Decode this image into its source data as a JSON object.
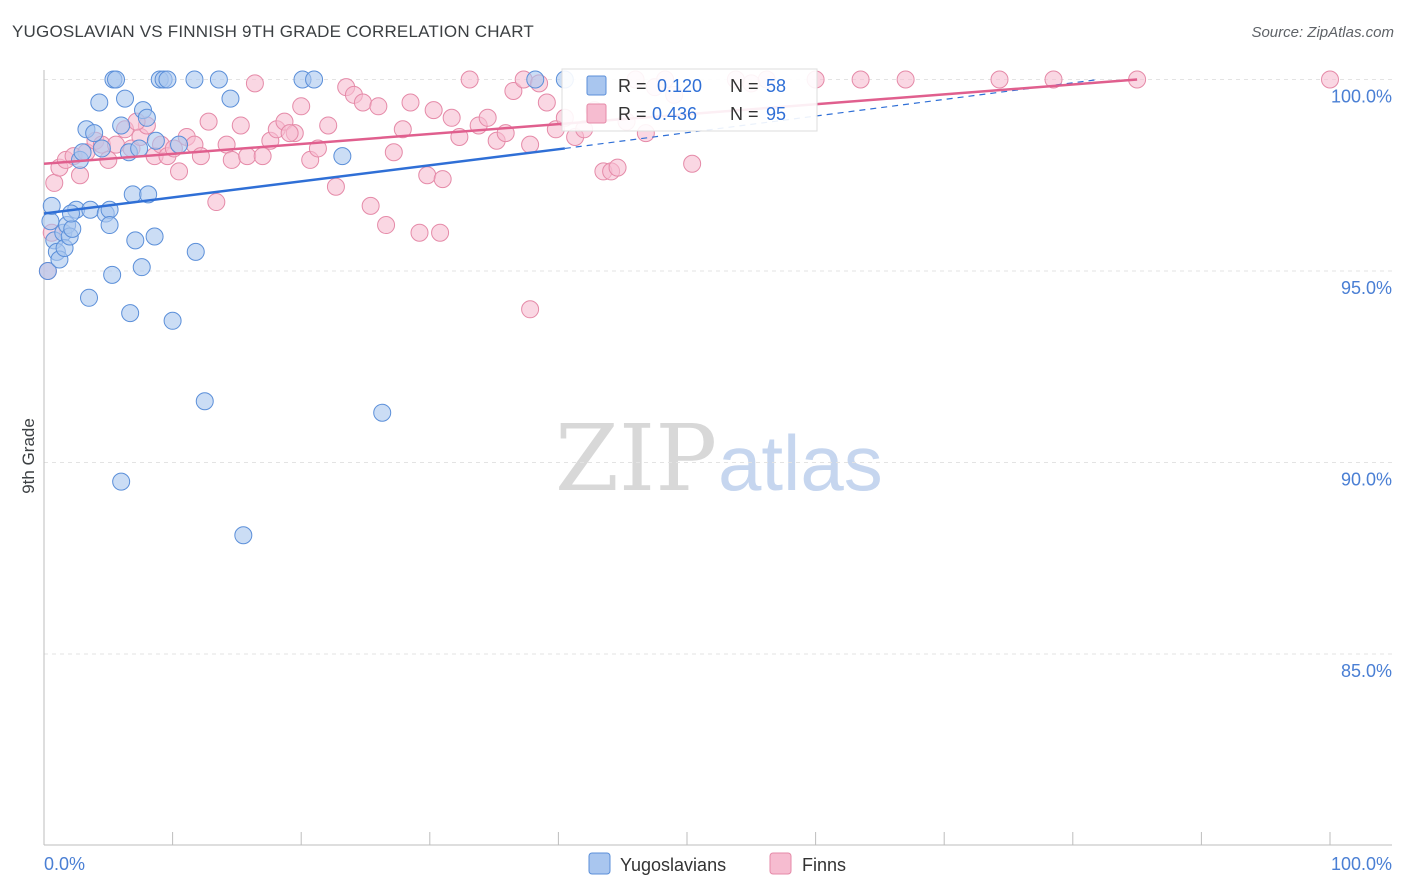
{
  "header": {
    "title": "YUGOSLAVIAN VS FINNISH 9TH GRADE CORRELATION CHART",
    "source": "Source: ZipAtlas.com"
  },
  "watermark": {
    "zip": "ZIP",
    "atlas": "atlas"
  },
  "colors": {
    "blue_fill": "#a9c6ef",
    "blue_stroke": "#5b8fd9",
    "blue_line": "#2f6fd6",
    "pink_fill": "#f6bcd0",
    "pink_stroke": "#e58aa8",
    "pink_line": "#e05f8e",
    "grid": "#e3e3e3",
    "tick_text": "#4a7fd4"
  },
  "stats": {
    "blue": {
      "r_label": "R =",
      "r_value": "0.120",
      "n_label": "N =",
      "n_value": "58"
    },
    "pink": {
      "r_label": "R =",
      "r_value": "0.436",
      "n_label": "N =",
      "n_value": "95"
    }
  },
  "chart_data": {
    "type": "scatter",
    "title": "YUGOSLAVIAN VS FINNISH 9TH GRADE CORRELATION CHART",
    "xlabel": "",
    "ylabel": "9th Grade",
    "xlim": [
      0,
      100
    ],
    "ylim": [
      80.5,
      100.5
    ],
    "x_tick_labels": [
      "0.0%",
      "100.0%"
    ],
    "y_ticks": [
      {
        "value": 85,
        "label": "85.0%"
      },
      {
        "value": 90,
        "label": "90.0%"
      },
      {
        "value": 95,
        "label": "95.0%"
      },
      {
        "value": 100,
        "label": "100.0%"
      }
    ],
    "legend": [
      "Yugoslavians",
      "Finns"
    ],
    "series": [
      {
        "name": "Yugoslavians",
        "color": "blue",
        "trend": {
          "x0": 0,
          "y0": 96.5,
          "x1": 40.5,
          "y1": 98.2,
          "dash_x1": 82.0,
          "dash_y1": 100.0
        },
        "points": [
          [
            0.3,
            95.0
          ],
          [
            0.5,
            96.3
          ],
          [
            0.6,
            96.7
          ],
          [
            0.8,
            95.8
          ],
          [
            1.0,
            95.5
          ],
          [
            1.2,
            95.3
          ],
          [
            1.5,
            96.0
          ],
          [
            1.6,
            95.6
          ],
          [
            1.8,
            96.2
          ],
          [
            2.0,
            95.9
          ],
          [
            2.2,
            96.1
          ],
          [
            2.5,
            96.6
          ],
          [
            2.8,
            97.9
          ],
          [
            3.0,
            98.1
          ],
          [
            3.3,
            98.7
          ],
          [
            3.6,
            96.6
          ],
          [
            3.9,
            98.6
          ],
          [
            4.3,
            99.4
          ],
          [
            4.8,
            96.5
          ],
          [
            5.1,
            96.6
          ],
          [
            5.1,
            96.2
          ],
          [
            5.3,
            94.9
          ],
          [
            5.4,
            100.0
          ],
          [
            5.6,
            100.0
          ],
          [
            6.0,
            98.8
          ],
          [
            6.3,
            99.5
          ],
          [
            6.6,
            98.1
          ],
          [
            6.9,
            97.0
          ],
          [
            7.1,
            95.8
          ],
          [
            7.4,
            98.2
          ],
          [
            7.6,
            95.1
          ],
          [
            7.7,
            99.2
          ],
          [
            8.0,
            99.0
          ],
          [
            8.1,
            97.0
          ],
          [
            8.6,
            95.9
          ],
          [
            8.7,
            98.4
          ],
          [
            9.0,
            100.0
          ],
          [
            9.3,
            100.0
          ],
          [
            9.6,
            100.0
          ],
          [
            10.0,
            93.7
          ],
          [
            10.5,
            98.3
          ],
          [
            11.7,
            100.0
          ],
          [
            11.8,
            95.5
          ],
          [
            12.5,
            91.6
          ],
          [
            13.6,
            100.0
          ],
          [
            14.5,
            99.5
          ],
          [
            15.5,
            88.1
          ],
          [
            20.1,
            100.0
          ],
          [
            21.0,
            100.0
          ],
          [
            23.2,
            98.0
          ],
          [
            26.3,
            91.3
          ],
          [
            3.5,
            94.3
          ],
          [
            6.7,
            93.9
          ],
          [
            6.0,
            89.5
          ],
          [
            38.2,
            100.0
          ],
          [
            40.5,
            100.0
          ],
          [
            2.1,
            96.5
          ],
          [
            4.5,
            98.2
          ]
        ]
      },
      {
        "name": "Finns",
        "color": "pink",
        "trend": {
          "x0": 0,
          "y0": 97.8,
          "x1": 85.0,
          "y1": 100.0
        },
        "points": [
          [
            0.3,
            95.0
          ],
          [
            0.6,
            96.0
          ],
          [
            0.8,
            97.3
          ],
          [
            1.2,
            97.7
          ],
          [
            1.7,
            97.9
          ],
          [
            2.3,
            98.0
          ],
          [
            2.8,
            97.5
          ],
          [
            3.3,
            98.1
          ],
          [
            4.0,
            98.4
          ],
          [
            4.5,
            98.3
          ],
          [
            5.0,
            97.9
          ],
          [
            5.6,
            98.3
          ],
          [
            6.3,
            98.7
          ],
          [
            6.8,
            98.2
          ],
          [
            7.5,
            98.5
          ],
          [
            8.0,
            98.8
          ],
          [
            8.6,
            98.0
          ],
          [
            9.1,
            98.3
          ],
          [
            9.6,
            98.0
          ],
          [
            10.1,
            98.2
          ],
          [
            10.5,
            97.6
          ],
          [
            11.1,
            98.5
          ],
          [
            11.7,
            98.3
          ],
          [
            12.2,
            98.0
          ],
          [
            12.8,
            98.9
          ],
          [
            13.4,
            96.8
          ],
          [
            14.2,
            98.3
          ],
          [
            14.6,
            97.9
          ],
          [
            15.3,
            98.8
          ],
          [
            15.8,
            98.0
          ],
          [
            16.4,
            99.9
          ],
          [
            17.0,
            98.0
          ],
          [
            17.6,
            98.4
          ],
          [
            18.1,
            98.7
          ],
          [
            18.7,
            98.9
          ],
          [
            19.5,
            98.6
          ],
          [
            20.0,
            99.3
          ],
          [
            20.7,
            97.9
          ],
          [
            21.3,
            98.2
          ],
          [
            22.1,
            98.8
          ],
          [
            22.7,
            97.2
          ],
          [
            23.5,
            99.8
          ],
          [
            24.1,
            99.6
          ],
          [
            24.8,
            99.4
          ],
          [
            25.4,
            96.7
          ],
          [
            26.0,
            99.3
          ],
          [
            26.6,
            96.2
          ],
          [
            27.2,
            98.1
          ],
          [
            27.9,
            98.7
          ],
          [
            28.5,
            99.4
          ],
          [
            29.2,
            96.0
          ],
          [
            29.8,
            97.5
          ],
          [
            30.3,
            99.2
          ],
          [
            31.0,
            97.4
          ],
          [
            31.7,
            99.0
          ],
          [
            32.3,
            98.5
          ],
          [
            33.1,
            100.0
          ],
          [
            33.8,
            98.8
          ],
          [
            34.5,
            99.0
          ],
          [
            35.2,
            98.4
          ],
          [
            35.9,
            98.6
          ],
          [
            36.5,
            99.7
          ],
          [
            37.3,
            100.0
          ],
          [
            37.8,
            98.3
          ],
          [
            38.5,
            99.9
          ],
          [
            39.1,
            99.4
          ],
          [
            39.8,
            98.7
          ],
          [
            40.5,
            99.0
          ],
          [
            41.3,
            98.5
          ],
          [
            42.0,
            98.7
          ],
          [
            42.8,
            99.2
          ],
          [
            43.5,
            97.6
          ],
          [
            44.1,
            97.6
          ],
          [
            44.6,
            97.7
          ],
          [
            45.3,
            98.9
          ],
          [
            46.0,
            100.0
          ],
          [
            46.8,
            98.6
          ],
          [
            47.5,
            99.8
          ],
          [
            48.3,
            100.0
          ],
          [
            49.0,
            99.6
          ],
          [
            50.4,
            97.8
          ],
          [
            53.8,
            100.0
          ],
          [
            55.0,
            99.9
          ],
          [
            56.2,
            100.0
          ],
          [
            60.0,
            100.0
          ],
          [
            63.5,
            100.0
          ],
          [
            67.0,
            100.0
          ],
          [
            74.3,
            100.0
          ],
          [
            78.5,
            100.0
          ],
          [
            85.0,
            100.0
          ],
          [
            100.0,
            100.0
          ],
          [
            37.8,
            94.0
          ],
          [
            7.2,
            98.9
          ],
          [
            19.1,
            98.6
          ],
          [
            30.8,
            96.0
          ]
        ]
      }
    ]
  }
}
